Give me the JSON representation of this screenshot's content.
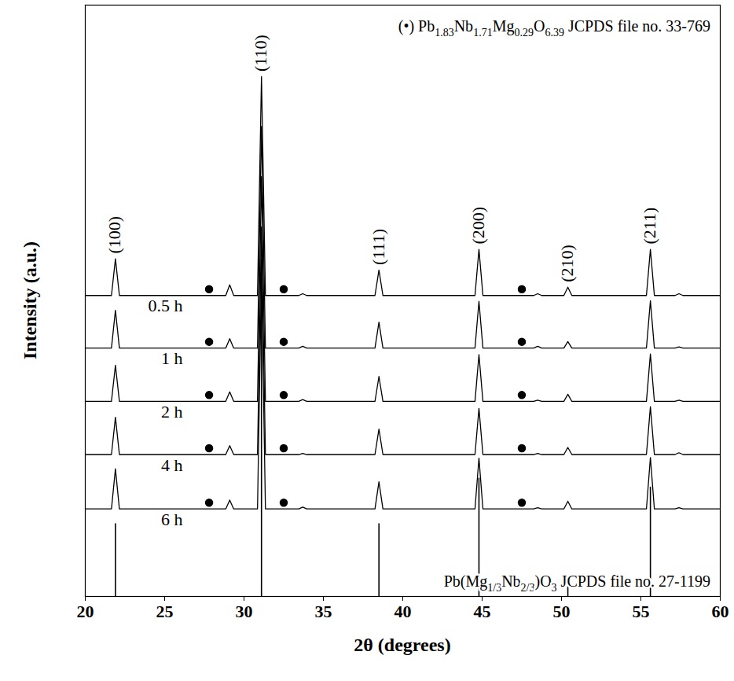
{
  "chart_data": {
    "type": "line",
    "x_label": "2θ (degrees)",
    "y_label": "Intensity (a.u.)",
    "xlim": [
      20,
      60
    ],
    "xticks": [
      20,
      25,
      30,
      35,
      40,
      45,
      50,
      55,
      60
    ],
    "ylim": [
      0,
      100
    ],
    "yticks": [],
    "tick_labels": "x",
    "grid": false,
    "legend": "top-right",
    "x": [
      20,
      21.65,
      21.9,
      22.15,
      28.85,
      29.1,
      29.35,
      30.85,
      31.1,
      31.35,
      33.45,
      33.7,
      33.95,
      38.25,
      38.5,
      38.75,
      44.55,
      44.8,
      45.05,
      48.25,
      48.5,
      48.75,
      50.15,
      50.4,
      50.65,
      55.35,
      55.6,
      55.85,
      57.15,
      57.4,
      57.65,
      60
    ],
    "series": [
      {
        "name": "0.5 h",
        "color": "#000000",
        "line_style": "solid",
        "values": [
          50.9,
          50.9,
          57.1,
          50.9,
          50.9,
          52.7,
          50.9,
          50.9,
          87.9,
          50.9,
          50.9,
          51.2,
          50.9,
          50.9,
          55.2,
          50.9,
          50.9,
          58.7,
          50.9,
          50.9,
          51.2,
          50.9,
          50.9,
          52.3,
          50.9,
          50.9,
          58.7,
          50.9,
          50.9,
          51.2,
          50.9,
          50.9
        ]
      },
      {
        "name": "1 h",
        "color": "#000000",
        "line_style": "solid",
        "values": [
          42.0,
          42.0,
          48.4,
          42.0,
          42.0,
          43.6,
          42.0,
          42.0,
          79.5,
          42.0,
          42.0,
          42.3,
          42.0,
          42.0,
          46.4,
          42.0,
          42.0,
          49.9,
          42.0,
          42.0,
          42.3,
          42.0,
          42.0,
          43.1,
          42.0,
          42.0,
          50.0,
          42.0,
          42.0,
          42.2,
          42.0,
          42.0
        ]
      },
      {
        "name": "2 h",
        "color": "#000000",
        "line_style": "solid",
        "values": [
          33.0,
          33.0,
          39.1,
          33.0,
          33.0,
          34.6,
          33.0,
          33.0,
          71.0,
          33.0,
          33.0,
          33.3,
          33.0,
          33.0,
          37.2,
          33.0,
          33.0,
          40.9,
          33.0,
          33.0,
          33.2,
          33.0,
          33.0,
          34.2,
          33.0,
          33.0,
          41.0,
          33.0,
          33.0,
          33.2,
          33.0,
          33.0
        ]
      },
      {
        "name": "4 h",
        "color": "#000000",
        "line_style": "solid",
        "values": [
          24.0,
          24.0,
          30.3,
          24.0,
          24.0,
          25.5,
          24.0,
          24.0,
          62.5,
          24.0,
          24.0,
          24.2,
          24.0,
          24.0,
          28.3,
          24.0,
          24.0,
          31.8,
          24.0,
          24.0,
          24.2,
          24.0,
          24.0,
          25.2,
          24.0,
          24.0,
          32.1,
          24.0,
          24.0,
          24.3,
          24.0,
          24.0
        ]
      },
      {
        "name": "6 h",
        "color": "#000000",
        "line_style": "solid",
        "values": [
          14.8,
          14.8,
          21.6,
          14.8,
          14.8,
          16.3,
          14.8,
          14.8,
          54.8,
          14.8,
          14.8,
          15.1,
          14.8,
          14.8,
          19.4,
          14.8,
          14.8,
          23.4,
          14.8,
          14.8,
          15.0,
          14.8,
          14.8,
          16.1,
          14.8,
          14.8,
          23.5,
          14.8,
          14.8,
          15.0,
          14.8,
          14.8
        ]
      }
    ],
    "peak_labels": [
      {
        "text": "(100)",
        "x": 21.9
      },
      {
        "text": "(110)",
        "x": 31.1
      },
      {
        "text": "(111)",
        "x": 38.5
      },
      {
        "text": "(200)",
        "x": 44.8
      },
      {
        "text": "(210)",
        "x": 50.4
      },
      {
        "text": "(211)",
        "x": 55.6
      }
    ],
    "phase": {
      "label": "(•) Pb1.83Nb1.71Mg0.29O6.39 JCPDS file no. 33-769",
      "marker": "circle",
      "color": "#000000",
      "x": [
        27.8,
        32.5,
        47.5
      ]
    },
    "reference": {
      "name": "Pb(Mg1/3Nb2/3)O3 JCPDS file no. 27-1199",
      "color": "#000000",
      "x": [
        21.9,
        31.1,
        38.5,
        44.8,
        50.4,
        55.6
      ],
      "values": [
        12.3,
        57,
        12.3,
        20,
        2.5,
        18.5
      ]
    }
  }
}
